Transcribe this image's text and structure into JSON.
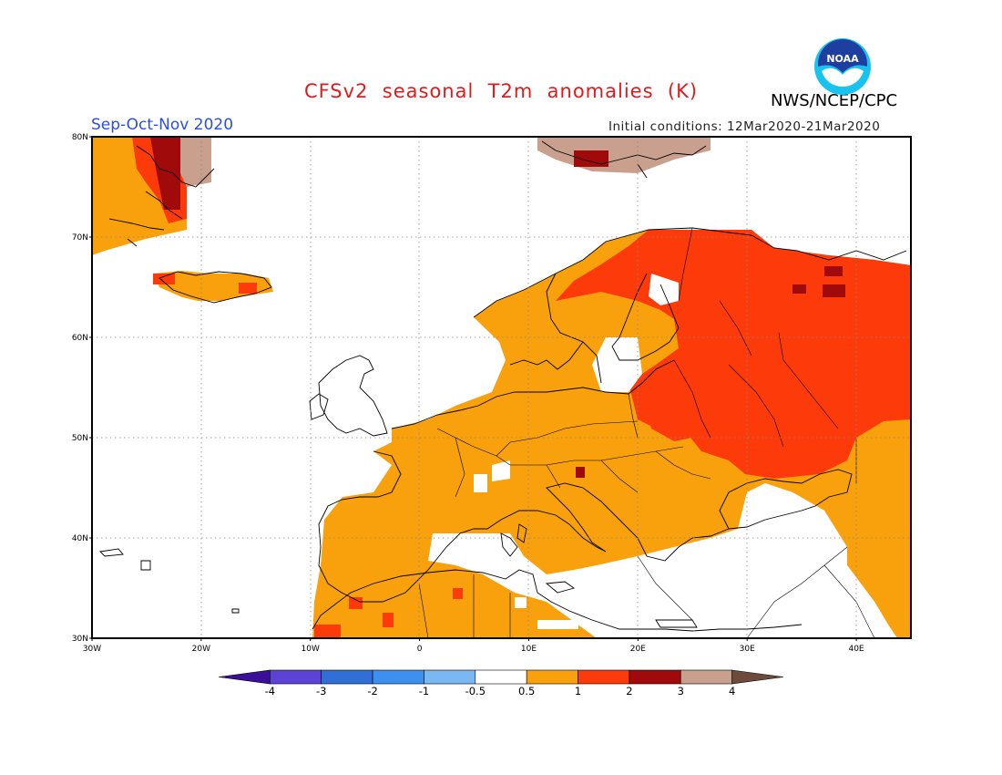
{
  "header": {
    "title": "CFSv2  seasonal  T2m  anomalies  (K)",
    "agency": "NWS/NCEP/CPC",
    "season": "Sep-Oct-Nov 2020",
    "initial_conditions": "Initial conditions: 12Mar2020-21Mar2020",
    "logo_text": "NOAA"
  },
  "map": {
    "region": "Europe",
    "lon_range": [
      -30,
      45
    ],
    "lat_range": [
      30,
      80
    ],
    "lat_ticks": [
      {
        "value": 80,
        "label": "80N"
      },
      {
        "value": 70,
        "label": "70N"
      },
      {
        "value": 60,
        "label": "60N"
      },
      {
        "value": 50,
        "label": "50N"
      },
      {
        "value": 40,
        "label": "40N"
      },
      {
        "value": 30,
        "label": "30N"
      }
    ],
    "lon_ticks": [
      {
        "value": -30,
        "label": "30W"
      },
      {
        "value": -20,
        "label": "20W"
      },
      {
        "value": -10,
        "label": "10W"
      },
      {
        "value": 0,
        "label": "0"
      },
      {
        "value": 10,
        "label": "10E"
      },
      {
        "value": 20,
        "label": "20E"
      },
      {
        "value": 30,
        "label": "30E"
      },
      {
        "value": 40,
        "label": "40E"
      }
    ],
    "grid": "dotted"
  },
  "colorbar": {
    "labels": [
      "-4",
      "-3",
      "-2",
      "-1",
      "-0.5",
      "0.5",
      "1",
      "2",
      "3",
      "4"
    ],
    "colors": [
      "#3b0f9a",
      "#5c43d6",
      "#2f6fd6",
      "#3d8ff0",
      "#79b8f2",
      "#ffffff",
      "#f9a10c",
      "#fd3a0a",
      "#a00a0a",
      "#c9a08e",
      "#6e4a3c"
    ]
  }
}
